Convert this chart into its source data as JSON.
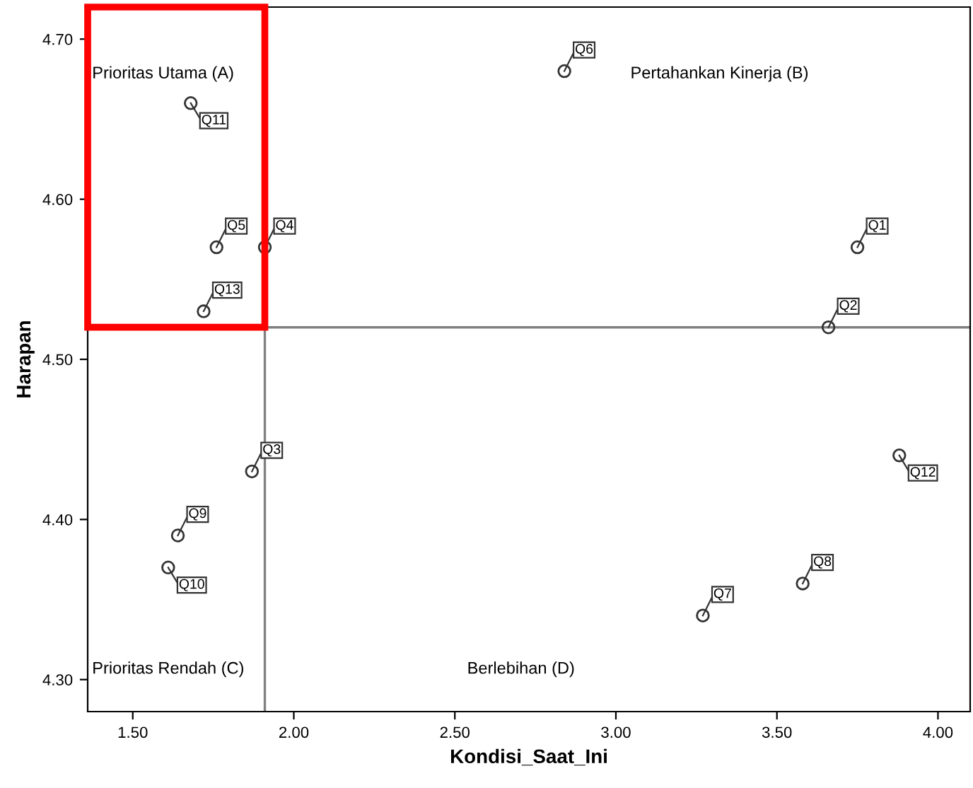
{
  "chart_data": {
    "type": "scatter",
    "xlabel": "Kondisi_Saat_Ini",
    "ylabel": "Harapan",
    "x": [
      3.75,
      3.66,
      1.87,
      1.91,
      1.76,
      2.84,
      3.27,
      3.58,
      1.64,
      1.61,
      1.68,
      3.88,
      1.72
    ],
    "values": [
      4.57,
      4.52,
      4.43,
      4.57,
      4.57,
      4.68,
      4.34,
      4.36,
      4.39,
      4.37,
      4.66,
      4.44,
      4.53
    ],
    "value_labels": [
      "Q1",
      "Q2",
      "Q3",
      "Q4",
      "Q5",
      "Q6",
      "Q7",
      "Q8",
      "Q9",
      "Q10",
      "Q11",
      "Q12",
      "Q13"
    ],
    "color": "#333333",
    "marker": "circle",
    "xlim": [
      1.36,
      4.1
    ],
    "xticks": [
      {
        "value": 1.5,
        "label": "1.50"
      },
      {
        "value": 2.0,
        "label": "2.00"
      },
      {
        "value": 2.5,
        "label": "2.50"
      },
      {
        "value": 3.0,
        "label": "3.00"
      },
      {
        "value": 3.5,
        "label": "3.50"
      },
      {
        "value": 4.0,
        "label": "4.00"
      }
    ],
    "ylim": [
      4.28,
      4.72
    ],
    "yticks": [
      {
        "value": 4.3,
        "label": "4.30"
      },
      {
        "value": 4.4,
        "label": "4.40"
      },
      {
        "value": 4.5,
        "label": "4.50"
      },
      {
        "value": 4.6,
        "label": "4.60"
      },
      {
        "value": 4.7,
        "label": "4.70"
      }
    ],
    "ref_lines": [
      {
        "axis": "x",
        "value": 1.91,
        "color": "#808080"
      },
      {
        "axis": "y",
        "value": 4.52,
        "color": "#808080"
      }
    ],
    "annotations": [
      "Prioritas Utama (A)",
      "Pertahankan Kinerja (B)",
      "Prioritas Rendah (C)",
      "Berlebihan (D)"
    ],
    "grid": false,
    "legend": false
  }
}
